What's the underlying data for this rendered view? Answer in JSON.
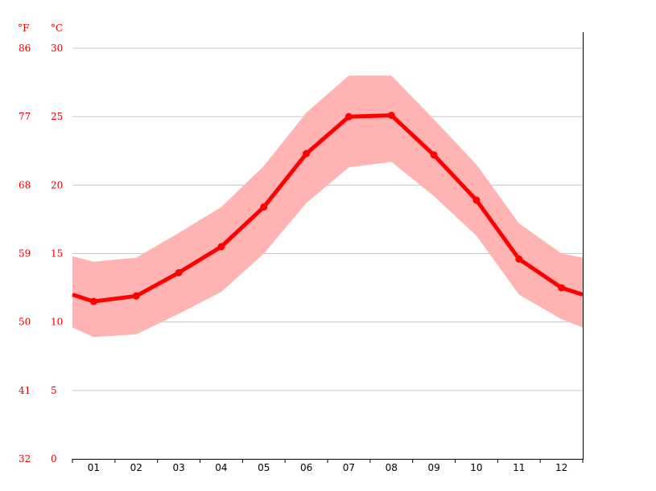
{
  "chart_data": {
    "type": "line",
    "title": "",
    "units": {
      "f": "°F",
      "c": "°C"
    },
    "x": [
      "01",
      "02",
      "03",
      "04",
      "05",
      "06",
      "07",
      "08",
      "09",
      "10",
      "11",
      "12"
    ],
    "series": [
      {
        "values": [
          11.5,
          11.9,
          13.6,
          15.5,
          18.4,
          22.3,
          25.0,
          25.1,
          22.2,
          18.9,
          14.6,
          12.5
        ]
      }
    ],
    "band": {
      "max": [
        14.4,
        14.7,
        16.5,
        18.4,
        21.4,
        25.3,
        28.0,
        28.0,
        24.8,
        21.5,
        17.2,
        15.0
      ],
      "min": [
        8.9,
        9.1,
        10.6,
        12.2,
        15.0,
        18.7,
        21.3,
        21.7,
        19.2,
        16.3,
        12.0,
        10.2
      ]
    },
    "edge_values": {
      "start": 12.0,
      "end": 12.0,
      "band_start": [
        14.8,
        9.6
      ],
      "band_end": [
        14.7,
        9.6
      ]
    },
    "y_ticks_c": [
      "0",
      "5",
      "10",
      "15",
      "20",
      "25",
      "30"
    ],
    "y_ticks_f": [
      "32",
      "41",
      "50",
      "59",
      "68",
      "77",
      "86"
    ],
    "ylim": [
      0,
      30
    ],
    "grid": true,
    "colors": {
      "line": "#ff0000",
      "band": "#ffb3b3",
      "axis_text": "#e60000",
      "grid": "#c8c8c8",
      "axis": "#000000"
    }
  }
}
